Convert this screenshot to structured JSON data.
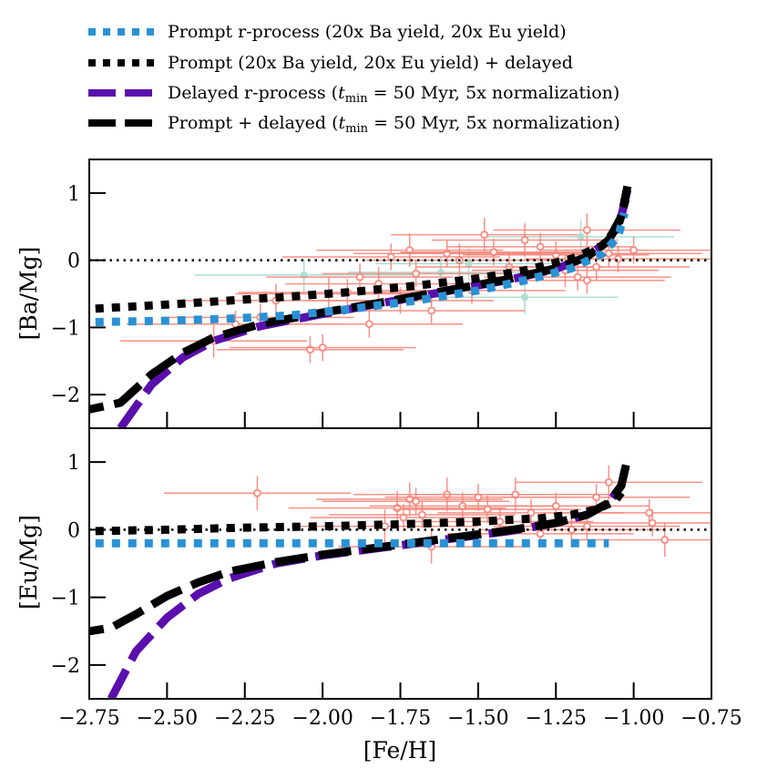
{
  "chart_data": [
    {
      "type": "line",
      "panel": "top",
      "ylabel": "[Ba/Mg]",
      "xlabel": "",
      "xlim": [
        -2.75,
        -0.75
      ],
      "ylim": [
        -2.5,
        1.5
      ],
      "yticks": [
        -2,
        -1,
        0,
        1
      ],
      "ytick_labels": [
        "−2",
        "−1",
        "0",
        "1"
      ],
      "reference_line_y": 0,
      "series": [
        {
          "name": "Prompt r-process (20x Ba yield, 20x Eu yield)",
          "style": "dotted",
          "color": "#2a91d4",
          "x": [
            -2.73,
            -2.5,
            -2.3,
            -2.1,
            -1.9,
            -1.7,
            -1.5,
            -1.35,
            -1.2,
            -1.1,
            -1.05,
            -1.03
          ],
          "y": [
            -0.92,
            -0.9,
            -0.87,
            -0.82,
            -0.72,
            -0.6,
            -0.45,
            -0.3,
            -0.12,
            0.1,
            0.35,
            0.7
          ]
        },
        {
          "name": "Prompt (20x Ba yield, 20x Eu yield) + delayed",
          "style": "dotted",
          "color": "#000000",
          "x": [
            -2.73,
            -2.5,
            -2.3,
            -2.1,
            -1.9,
            -1.7,
            -1.5,
            -1.35,
            -1.2,
            -1.1,
            -1.05,
            -1.02
          ],
          "y": [
            -0.72,
            -0.66,
            -0.6,
            -0.54,
            -0.47,
            -0.38,
            -0.27,
            -0.15,
            0.02,
            0.22,
            0.5,
            1.0
          ]
        },
        {
          "name": "Delayed r-process (t_min = 50 Myr, 5x normalization)",
          "style": "dashed",
          "color": "#5a0fad",
          "x": [
            -2.65,
            -2.55,
            -2.45,
            -2.35,
            -2.2,
            -2.0,
            -1.8,
            -1.6,
            -1.4,
            -1.25,
            -1.15,
            -1.08,
            -1.04,
            -1.02
          ],
          "y": [
            -2.5,
            -1.85,
            -1.45,
            -1.2,
            -0.98,
            -0.8,
            -0.63,
            -0.46,
            -0.29,
            -0.13,
            0.05,
            0.3,
            0.65,
            1.05
          ]
        },
        {
          "name": "Prompt + delayed (t_min = 50 Myr, 5x normalization)",
          "style": "dashed",
          "color": "#000000",
          "x": [
            -2.75,
            -2.65,
            -2.55,
            -2.45,
            -2.35,
            -2.2,
            -2.0,
            -1.8,
            -1.6,
            -1.4,
            -1.25,
            -1.15,
            -1.08,
            -1.04,
            -1.02
          ],
          "y": [
            -2.22,
            -2.12,
            -1.7,
            -1.38,
            -1.15,
            -0.95,
            -0.78,
            -0.62,
            -0.45,
            -0.28,
            -0.12,
            0.05,
            0.3,
            0.65,
            1.1
          ]
        }
      ],
      "observations": [
        {
          "x": -2.35,
          "y": -1.2,
          "xerr": 0.3,
          "yerr": 0.25
        },
        {
          "x": -2.28,
          "y": -0.95,
          "xerr": 0.35,
          "yerr": 0.2
        },
        {
          "x": -2.2,
          "y": -0.85,
          "xerr": 0.3,
          "yerr": 0.2
        },
        {
          "x": -2.15,
          "y": -0.6,
          "xerr": 0.3,
          "yerr": 0.25
        },
        {
          "x": -2.04,
          "y": -1.33,
          "xerr": 0.3,
          "yerr": 0.2
        },
        {
          "x": -2.0,
          "y": -1.3,
          "xerr": 0.3,
          "yerr": 0.2
        },
        {
          "x": -1.98,
          "y": -0.5,
          "xerr": 0.3,
          "yerr": 0.25
        },
        {
          "x": -1.92,
          "y": -0.48,
          "xerr": 0.35,
          "yerr": 0.2
        },
        {
          "x": -1.88,
          "y": -0.25,
          "xerr": 0.3,
          "yerr": 0.2
        },
        {
          "x": -1.85,
          "y": -0.95,
          "xerr": 0.3,
          "yerr": 0.2
        },
        {
          "x": -1.82,
          "y": -0.35,
          "xerr": 0.3,
          "yerr": 0.25
        },
        {
          "x": -1.78,
          "y": 0.05,
          "xerr": 0.35,
          "yerr": 0.2
        },
        {
          "x": -1.75,
          "y": -0.6,
          "xerr": 0.3,
          "yerr": 0.2
        },
        {
          "x": -1.72,
          "y": 0.15,
          "xerr": 0.3,
          "yerr": 0.25
        },
        {
          "x": -1.7,
          "y": -0.2,
          "xerr": 0.3,
          "yerr": 0.2
        },
        {
          "x": -1.65,
          "y": -0.75,
          "xerr": 0.3,
          "yerr": 0.2
        },
        {
          "x": -1.6,
          "y": 0.1,
          "xerr": 0.3,
          "yerr": 0.2
        },
        {
          "x": -1.56,
          "y": 0.0,
          "xerr": 0.3,
          "yerr": 0.25
        },
        {
          "x": -1.52,
          "y": -0.45,
          "xerr": 0.3,
          "yerr": 0.2
        },
        {
          "x": -1.48,
          "y": 0.38,
          "xerr": 0.3,
          "yerr": 0.25
        },
        {
          "x": -1.45,
          "y": 0.12,
          "xerr": 0.3,
          "yerr": 0.2
        },
        {
          "x": -1.4,
          "y": -0.1,
          "xerr": 0.3,
          "yerr": 0.2
        },
        {
          "x": -1.35,
          "y": 0.3,
          "xerr": 0.3,
          "yerr": 0.25
        },
        {
          "x": -1.3,
          "y": 0.2,
          "xerr": 0.3,
          "yerr": 0.2
        },
        {
          "x": -1.25,
          "y": 0.08,
          "xerr": 0.3,
          "yerr": 0.2
        },
        {
          "x": -1.22,
          "y": -0.15,
          "xerr": 0.3,
          "yerr": 0.25
        },
        {
          "x": -1.18,
          "y": -0.25,
          "xerr": 0.3,
          "yerr": 0.2
        },
        {
          "x": -1.15,
          "y": 0.45,
          "xerr": 0.3,
          "yerr": 0.25
        },
        {
          "x": -1.12,
          "y": -0.1,
          "xerr": 0.3,
          "yerr": 0.2
        },
        {
          "x": -1.08,
          "y": 0.1,
          "xerr": 0.3,
          "yerr": 0.2
        },
        {
          "x": -1.05,
          "y": 0.02,
          "xerr": 0.3,
          "yerr": 0.2
        },
        {
          "x": -1.0,
          "y": 0.15,
          "xerr": 0.3,
          "yerr": 0.2
        },
        {
          "x": -1.15,
          "y": -0.3,
          "xerr": 0.25,
          "yerr": 0.2
        }
      ],
      "observations_secondary": [
        {
          "x": -2.06,
          "y": -0.22,
          "xerr": 0.35,
          "yerr": 0.25
        },
        {
          "x": -1.62,
          "y": -0.18,
          "xerr": 0.3,
          "yerr": 0.25
        },
        {
          "x": -1.53,
          "y": -0.05,
          "xerr": 0.3,
          "yerr": 0.25
        },
        {
          "x": -1.17,
          "y": 0.35,
          "xerr": 0.3,
          "yerr": 0.25
        },
        {
          "x": -1.35,
          "y": -0.55,
          "xerr": 0.3,
          "yerr": 0.25
        }
      ]
    },
    {
      "type": "line",
      "panel": "bottom",
      "ylabel": "[Eu/Mg]",
      "xlabel": "[Fe/H]",
      "xlim": [
        -2.75,
        -0.75
      ],
      "ylim": [
        -2.5,
        1.5
      ],
      "yticks": [
        -2,
        -1,
        0,
        1
      ],
      "ytick_labels": [
        "−2",
        "−1",
        "0",
        "1"
      ],
      "xticks": [
        -2.75,
        -2.5,
        -2.25,
        -2.0,
        -1.75,
        -1.5,
        -1.25,
        -1.0,
        -0.75
      ],
      "xtick_labels": [
        "−2.75",
        "−2.50",
        "−2.25",
        "−2.00",
        "−1.75",
        "−1.50",
        "−1.25",
        "−1.00",
        "−0.75"
      ],
      "reference_line_y": 0,
      "series": [
        {
          "name": "Prompt r-process (20x Ba yield, 20x Eu yield)",
          "style": "dotted",
          "color": "#2a91d4",
          "x": [
            -2.73,
            -2.5,
            -2.25,
            -2.0,
            -1.75,
            -1.5,
            -1.25,
            -1.08
          ],
          "y": [
            -0.2,
            -0.2,
            -0.2,
            -0.2,
            -0.2,
            -0.2,
            -0.2,
            -0.2
          ]
        },
        {
          "name": "Prompt (20x Ba yield, 20x Eu yield) + delayed",
          "style": "dotted",
          "color": "#000000",
          "x": [
            -2.73,
            -2.5,
            -2.25,
            -2.0,
            -1.75,
            -1.5,
            -1.3,
            -1.2,
            -1.12,
            -1.06,
            -1.04
          ],
          "y": [
            -0.02,
            0.0,
            0.03,
            0.05,
            0.08,
            0.12,
            0.17,
            0.22,
            0.3,
            0.42,
            0.55
          ]
        },
        {
          "name": "Delayed r-process (t_min = 50 Myr, 5x normalization)",
          "style": "dashed",
          "color": "#5a0fad",
          "x": [
            -2.68,
            -2.6,
            -2.5,
            -2.4,
            -2.3,
            -2.15,
            -2.0,
            -1.8,
            -1.6,
            -1.4,
            -1.25,
            -1.15,
            -1.08,
            -1.04,
            -1.02
          ],
          "y": [
            -2.5,
            -1.8,
            -1.3,
            -0.95,
            -0.72,
            -0.5,
            -0.38,
            -0.26,
            -0.14,
            -0.02,
            0.1,
            0.22,
            0.4,
            0.65,
            1.05
          ]
        },
        {
          "name": "Prompt + delayed (t_min = 50 Myr, 5x normalization)",
          "style": "dashed",
          "color": "#000000",
          "x": [
            -2.75,
            -2.68,
            -2.6,
            -2.5,
            -2.4,
            -2.3,
            -2.15,
            -2.0,
            -1.8,
            -1.6,
            -1.4,
            -1.25,
            -1.15,
            -1.08,
            -1.04,
            -1.02
          ],
          "y": [
            -1.5,
            -1.45,
            -1.25,
            -0.98,
            -0.78,
            -0.62,
            -0.48,
            -0.37,
            -0.25,
            -0.13,
            -0.01,
            0.1,
            0.22,
            0.4,
            0.65,
            1.05
          ]
        }
      ],
      "observations": [
        {
          "x": -2.21,
          "y": 0.54,
          "xerr": 0.3,
          "yerr": 0.25
        },
        {
          "x": -1.8,
          "y": 0.05,
          "xerr": 0.3,
          "yerr": 0.25
        },
        {
          "x": -1.76,
          "y": 0.32,
          "xerr": 0.35,
          "yerr": 0.25
        },
        {
          "x": -1.74,
          "y": 0.18,
          "xerr": 0.3,
          "yerr": 0.2
        },
        {
          "x": -1.72,
          "y": 0.45,
          "xerr": 0.3,
          "yerr": 0.25
        },
        {
          "x": -1.7,
          "y": 0.42,
          "xerr": 0.3,
          "yerr": 0.2
        },
        {
          "x": -1.68,
          "y": 0.22,
          "xerr": 0.3,
          "yerr": 0.2
        },
        {
          "x": -1.65,
          "y": -0.25,
          "xerr": 0.3,
          "yerr": 0.25
        },
        {
          "x": -1.6,
          "y": 0.52,
          "xerr": 0.3,
          "yerr": 0.25
        },
        {
          "x": -1.55,
          "y": 0.35,
          "xerr": 0.3,
          "yerr": 0.2
        },
        {
          "x": -1.5,
          "y": 0.48,
          "xerr": 0.3,
          "yerr": 0.2
        },
        {
          "x": -1.47,
          "y": 0.3,
          "xerr": 0.3,
          "yerr": 0.2
        },
        {
          "x": -1.43,
          "y": 0.12,
          "xerr": 0.3,
          "yerr": 0.2
        },
        {
          "x": -1.38,
          "y": 0.52,
          "xerr": 0.3,
          "yerr": 0.25
        },
        {
          "x": -1.33,
          "y": 0.25,
          "xerr": 0.3,
          "yerr": 0.2
        },
        {
          "x": -1.3,
          "y": -0.06,
          "xerr": 0.3,
          "yerr": 0.2
        },
        {
          "x": -1.25,
          "y": 0.35,
          "xerr": 0.3,
          "yerr": 0.2
        },
        {
          "x": -1.2,
          "y": 0.0,
          "xerr": 0.3,
          "yerr": 0.25
        },
        {
          "x": -1.15,
          "y": 0.05,
          "xerr": 0.3,
          "yerr": 0.2
        },
        {
          "x": -1.12,
          "y": 0.48,
          "xerr": 0.3,
          "yerr": 0.2
        },
        {
          "x": -1.08,
          "y": 0.7,
          "xerr": 0.3,
          "yerr": 0.25
        },
        {
          "x": -0.95,
          "y": 0.25,
          "xerr": 0.3,
          "yerr": 0.2
        },
        {
          "x": -0.94,
          "y": 0.1,
          "xerr": 0.3,
          "yerr": 0.2
        },
        {
          "x": -0.9,
          "y": -0.15,
          "xerr": 0.3,
          "yerr": 0.25
        }
      ]
    }
  ],
  "legend": {
    "placement": "top",
    "entries": [
      {
        "label": "Prompt r-process (20x Ba yield, 20x Eu yield)",
        "style": "dotted",
        "color": "#2a91d4"
      },
      {
        "label": "Prompt (20x Ba yield, 20x Eu yield) + delayed",
        "style": "dotted",
        "color": "#000000"
      },
      {
        "label_pre": "Delayed r-process (",
        "label_var": "t",
        "label_sub": "min",
        "label_post": " = 50 Myr, 5x normalization)",
        "style": "dashed",
        "color": "#5a0fad"
      },
      {
        "label_pre": "Prompt + delayed (",
        "label_var": "t",
        "label_sub": "min",
        "label_post": " = 50 Myr, 5x normalization)",
        "style": "dashed",
        "color": "#000000"
      }
    ]
  },
  "colors": {
    "observation": "#f7867a",
    "observation_secondary": "#9fd8cc",
    "axis": "#000000"
  }
}
